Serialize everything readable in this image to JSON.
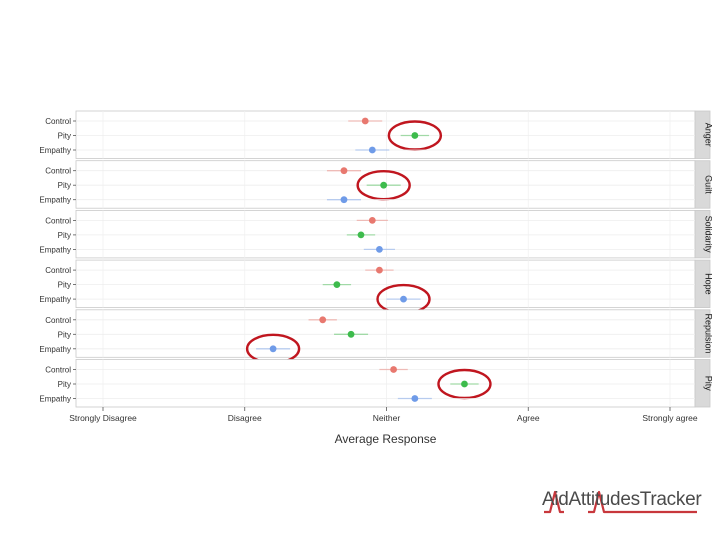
{
  "chart_data": {
    "type": "scatter",
    "xlabel": "Average Response",
    "x_ticks": [
      "Strongly Disagree",
      "Disagree",
      "Neither",
      "Agree",
      "Strongly agree"
    ],
    "xlim": [
      1,
      5
    ],
    "conditions": [
      "Control",
      "Pity",
      "Empathy"
    ],
    "condition_colors": {
      "Control": "#e8786f",
      "Pity": "#3dbb4c",
      "Empathy": "#6f9be8"
    },
    "panels": [
      {
        "name": "Anger",
        "values": [
          2.85,
          3.2,
          2.9
        ],
        "errors": [
          0.12,
          0.1,
          0.12
        ],
        "highlighted": [
          "Pity"
        ]
      },
      {
        "name": "Guilt",
        "values": [
          2.7,
          2.98,
          2.7
        ],
        "errors": [
          0.12,
          0.12,
          0.12
        ],
        "highlighted": [
          "Pity"
        ]
      },
      {
        "name": "Solidarity",
        "values": [
          2.9,
          2.82,
          2.95
        ],
        "errors": [
          0.11,
          0.1,
          0.11
        ],
        "highlighted": []
      },
      {
        "name": "Hope",
        "values": [
          2.95,
          2.65,
          3.12
        ],
        "errors": [
          0.1,
          0.1,
          0.12
        ],
        "highlighted": [
          "Empathy"
        ]
      },
      {
        "name": "Repulsion",
        "values": [
          2.55,
          2.75,
          2.2
        ],
        "errors": [
          0.1,
          0.12,
          0.12
        ],
        "highlighted": [
          "Empathy"
        ]
      },
      {
        "name": "Pity",
        "values": [
          3.05,
          3.55,
          3.2
        ],
        "errors": [
          0.1,
          0.1,
          0.12
        ],
        "highlighted": [
          "Pity"
        ]
      }
    ]
  },
  "logo": {
    "text": "AidAttitudesTracker",
    "accent_color": "#c8373c"
  }
}
